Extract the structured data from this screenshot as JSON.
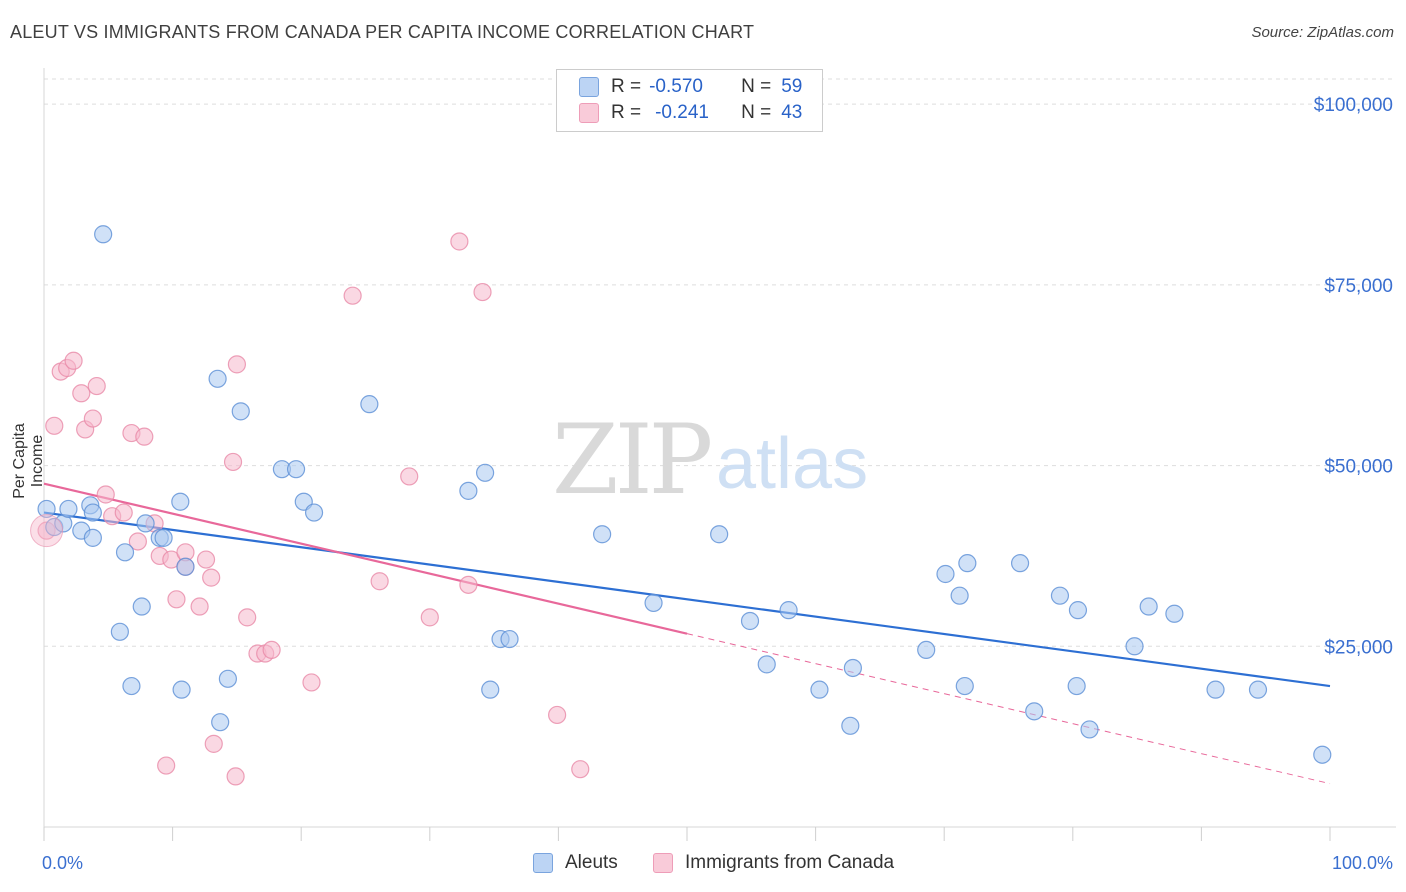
{
  "header": {
    "title": "ALEUT VS IMMIGRANTS FROM CANADA PER CAPITA INCOME CORRELATION CHART",
    "source": "Source: ZipAtlas.com"
  },
  "watermark": {
    "zip": "ZIP",
    "atlas": "atlas"
  },
  "legend": {
    "rows": [
      {
        "r_label": "R =",
        "r_value": "-0.570",
        "n_label": "N =",
        "n_value": "59"
      },
      {
        "r_label": "R =",
        "r_value": "-0.241",
        "n_label": "N =",
        "n_value": "43"
      }
    ],
    "bottom": [
      "Aleuts",
      "Immigrants from Canada"
    ]
  },
  "chart_data": {
    "type": "scatter",
    "title": "ALEUT VS IMMIGRANTS FROM CANADA PER CAPITA INCOME CORRELATION CHART",
    "xlabel": "",
    "ylabel": "Per Capita Income",
    "xlim": [
      0,
      100
    ],
    "ylim": [
      0,
      105000
    ],
    "x_tick_labels": [
      "0.0%",
      "100.0%"
    ],
    "y_ticks": [
      25000,
      50000,
      75000,
      100000
    ],
    "y_tick_labels": [
      "$25,000",
      "$50,000",
      "$75,000",
      "$100,000"
    ],
    "grid": true,
    "legend_position": "top-center",
    "colors": {
      "aleuts_fill": "#a9c8f0",
      "aleuts_stroke": "#5b8fd6",
      "aleuts_line": "#2d6fd3",
      "canada_fill": "#f6b8cc",
      "canada_stroke": "#e88aa8",
      "canada_line": "#e8689a",
      "axis_text": "#3a6fd0"
    },
    "series": [
      {
        "name": "Aleuts",
        "points": [
          [
            0.2,
            44000
          ],
          [
            0.8,
            41500
          ],
          [
            1.5,
            42000
          ],
          [
            1.9,
            44000
          ],
          [
            3.6,
            44500
          ],
          [
            3.8,
            43500
          ],
          [
            2.9,
            41000
          ],
          [
            3.8,
            40000
          ],
          [
            4.6,
            82000
          ],
          [
            6.3,
            38000
          ],
          [
            5.9,
            27000
          ],
          [
            6.8,
            19500
          ],
          [
            7.6,
            30500
          ],
          [
            7.9,
            42000
          ],
          [
            9.0,
            40000
          ],
          [
            9.3,
            40000
          ],
          [
            10.6,
            45000
          ],
          [
            10.7,
            19000
          ],
          [
            11.0,
            36000
          ],
          [
            13.5,
            62000
          ],
          [
            14.3,
            20500
          ],
          [
            13.7,
            14500
          ],
          [
            15.3,
            57500
          ],
          [
            18.5,
            49500
          ],
          [
            19.6,
            49500
          ],
          [
            20.2,
            45000
          ],
          [
            21.0,
            43500
          ],
          [
            25.3,
            58500
          ],
          [
            33.0,
            46500
          ],
          [
            34.3,
            49000
          ],
          [
            34.7,
            19000
          ],
          [
            35.5,
            26000
          ],
          [
            36.2,
            26000
          ],
          [
            43.4,
            40500
          ],
          [
            47.4,
            31000
          ],
          [
            52.5,
            40500
          ],
          [
            54.9,
            28500
          ],
          [
            56.2,
            22500
          ],
          [
            57.9,
            30000
          ],
          [
            60.3,
            19000
          ],
          [
            62.7,
            14000
          ],
          [
            62.9,
            22000
          ],
          [
            68.6,
            24500
          ],
          [
            70.1,
            35000
          ],
          [
            71.2,
            32000
          ],
          [
            71.6,
            19500
          ],
          [
            71.8,
            36500
          ],
          [
            75.9,
            36500
          ],
          [
            77.0,
            16000
          ],
          [
            79.0,
            32000
          ],
          [
            80.4,
            30000
          ],
          [
            80.3,
            19500
          ],
          [
            81.3,
            13500
          ],
          [
            84.8,
            25000
          ],
          [
            85.9,
            30500
          ],
          [
            87.9,
            29500
          ],
          [
            91.1,
            19000
          ],
          [
            94.4,
            19000
          ],
          [
            99.4,
            10000
          ]
        ]
      },
      {
        "name": "Immigrants from Canada",
        "points": [
          [
            0.2,
            41000
          ],
          [
            0.8,
            55500
          ],
          [
            1.3,
            63000
          ],
          [
            1.8,
            63500
          ],
          [
            2.3,
            64500
          ],
          [
            2.9,
            60000
          ],
          [
            3.2,
            55000
          ],
          [
            3.8,
            56500
          ],
          [
            4.1,
            61000
          ],
          [
            4.8,
            46000
          ],
          [
            5.3,
            43000
          ],
          [
            6.2,
            43500
          ],
          [
            6.8,
            54500
          ],
          [
            7.3,
            39500
          ],
          [
            7.8,
            54000
          ],
          [
            8.6,
            42000
          ],
          [
            9.0,
            37500
          ],
          [
            9.5,
            8500
          ],
          [
            9.9,
            37000
          ],
          [
            10.3,
            31500
          ],
          [
            11.0,
            36000
          ],
          [
            11.0,
            38000
          ],
          [
            12.1,
            30500
          ],
          [
            12.6,
            37000
          ],
          [
            13.0,
            34500
          ],
          [
            13.2,
            11500
          ],
          [
            14.7,
            50500
          ],
          [
            15.0,
            64000
          ],
          [
            14.9,
            7000
          ],
          [
            15.8,
            29000
          ],
          [
            16.6,
            24000
          ],
          [
            17.2,
            24000
          ],
          [
            17.7,
            24500
          ],
          [
            20.8,
            20000
          ],
          [
            24.0,
            73500
          ],
          [
            26.1,
            34000
          ],
          [
            28.4,
            48500
          ],
          [
            32.3,
            81000
          ],
          [
            33.0,
            33500
          ],
          [
            34.1,
            74000
          ],
          [
            39.9,
            15500
          ],
          [
            41.7,
            8000
          ],
          [
            30.0,
            29000
          ]
        ]
      }
    ],
    "trendlines": [
      {
        "name": "Aleuts",
        "from": [
          0,
          43500
        ],
        "to": [
          100,
          19500
        ],
        "dashed_from": null
      },
      {
        "name": "Immigrants from Canada",
        "from": [
          0,
          47500
        ],
        "to": [
          100,
          6000
        ],
        "dashed_from": 50
      }
    ]
  }
}
